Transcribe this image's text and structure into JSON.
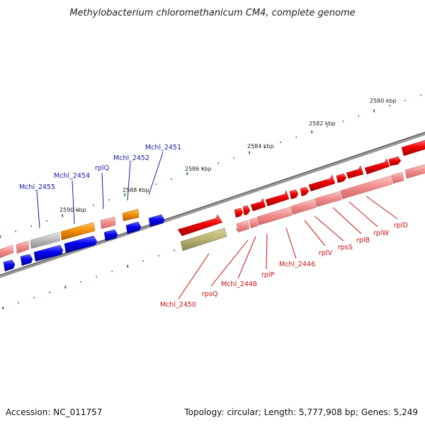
{
  "title": "Methylobacterium chloromethanicum CM4, complete genome",
  "footer": {
    "accession": "Accession: NC_011757",
    "topology": "Topology: circular; Length: 5,777,908 bp; Genes: 5,249"
  },
  "scale_labels": [
    "2580 kbp",
    "2582 kbp",
    "2584 kbp",
    "2586 kbp",
    "2588 kbp",
    "2590 kbp"
  ],
  "gene_labels_top": [
    "Mchl_2455",
    "Mchl_2454",
    "rplQ",
    "Mchl_2452",
    "Mchl_2451"
  ],
  "gene_labels_bottom": [
    "Mchl_2450",
    "rpsQ",
    "Mchl_2448",
    "rplP",
    "Mchl_2446",
    "rplV",
    "rpsS",
    "rplB",
    "rplW",
    "rplD"
  ],
  "colors": {
    "backbone": "#7a7a7a",
    "tick": "#2e8b2e",
    "cds_forward": "#0000ee",
    "rna_orange": "#f08c00",
    "cds_red": "#ee0000",
    "cds_pink": "#f08a8a",
    "pseudo_grey": "#b8b8b8",
    "khaki": "#b8b070",
    "label_blue": "#1a1aa8",
    "label_red": "#cc1111"
  }
}
